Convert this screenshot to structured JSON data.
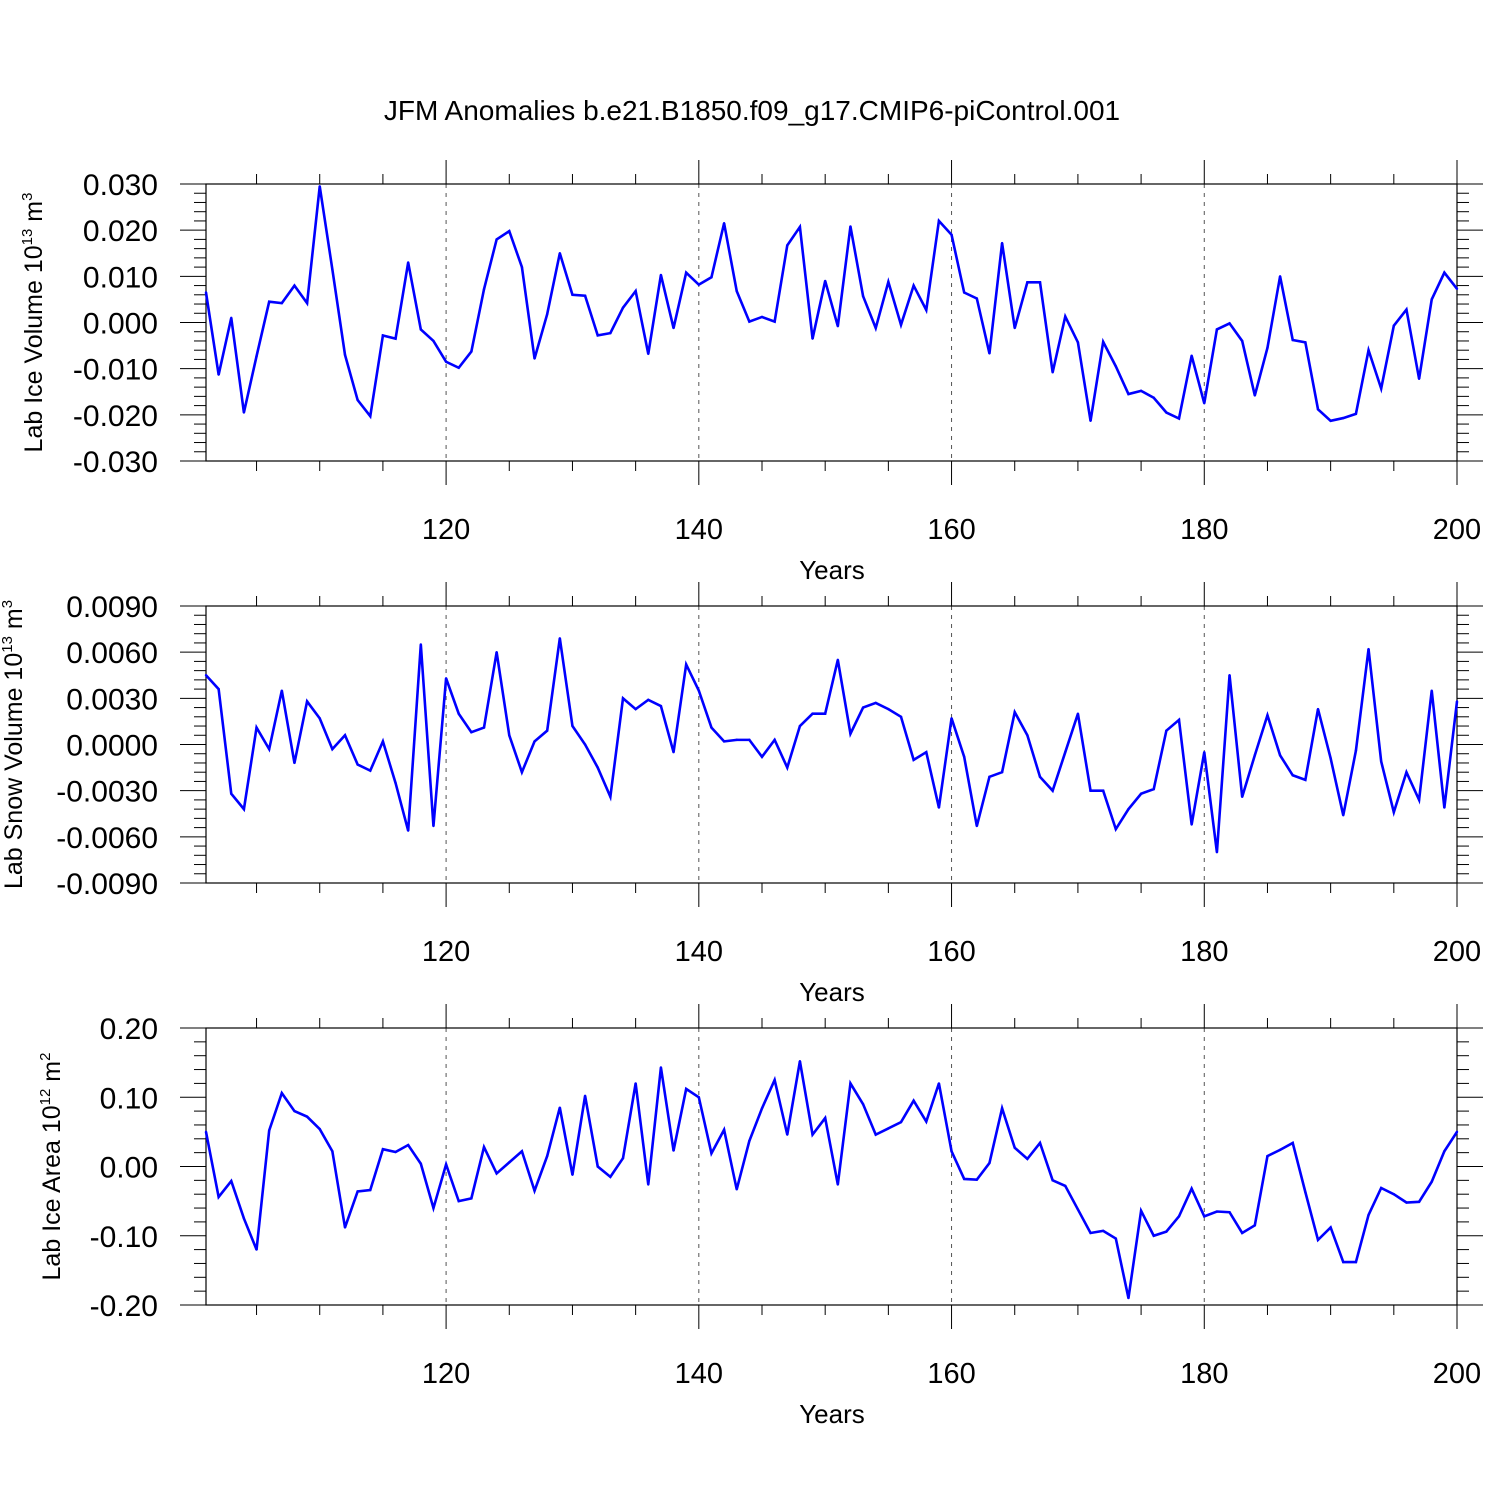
{
  "title": "JFM Anomalies b.e21.B1850.f09_g17.CMIP6-piControl.001",
  "colors": {
    "line": "#0000ff",
    "axis": "#000000",
    "grid": "#555555"
  },
  "chart_data": [
    {
      "type": "line",
      "ylabel_main": "Lab Ice Volume 10",
      "ylabel_exp": "13",
      "ylabel_unit": " m",
      "ylabel_unit_exp": "3",
      "xlabel": "Years",
      "xlim": [
        101,
        200
      ],
      "ylim": [
        -0.03,
        0.03
      ],
      "yticks": [
        -0.03,
        -0.02,
        -0.01,
        0.0,
        0.01,
        0.02,
        0.03
      ],
      "ytick_labels": [
        "-0.030",
        "-0.020",
        "-0.010",
        "0.000",
        "0.010",
        "0.020",
        "0.030"
      ],
      "xticks": [
        120,
        140,
        160,
        180,
        200
      ],
      "xtick_labels": [
        "120",
        "140",
        "160",
        "180",
        "200"
      ],
      "x_start": 101,
      "values": [
        0.0065,
        -0.0113,
        0.001,
        -0.0195,
        -0.0073,
        0.0045,
        0.0042,
        0.008,
        0.0042,
        0.0295,
        0.0115,
        -0.007,
        -0.0168,
        -0.0203,
        -0.0028,
        -0.0035,
        0.013,
        -0.0015,
        -0.004,
        -0.0085,
        -0.0098,
        -0.0063,
        0.0072,
        0.018,
        0.0198,
        0.012,
        -0.0078,
        0.0018,
        0.015,
        0.006,
        0.0058,
        -0.0028,
        -0.0023,
        0.0032,
        0.0068,
        -0.0068,
        0.0103,
        -0.0012,
        0.0108,
        0.0082,
        0.0098,
        0.0215,
        0.0068,
        0.0002,
        0.0012,
        0.0002,
        0.0167,
        0.0207,
        -0.0035,
        0.009,
        -0.0008,
        0.0208,
        0.0057,
        -0.0012,
        0.0088,
        -0.0005,
        0.008,
        0.0027,
        0.022,
        0.019,
        0.0065,
        0.0052,
        -0.0067,
        0.0172,
        -0.0012,
        0.0087,
        0.0087,
        -0.0108,
        0.0013,
        -0.0043,
        -0.0213,
        -0.0042,
        -0.0095,
        -0.0155,
        -0.0148,
        -0.0163,
        -0.0195,
        -0.0208,
        -0.0072,
        -0.0175,
        -0.0015,
        -0.0002,
        -0.004,
        -0.0158,
        -0.0055,
        0.01,
        -0.0038,
        -0.0043,
        -0.0188,
        -0.0213,
        -0.0207,
        -0.0198,
        -0.006,
        -0.0143,
        -0.0007,
        0.0028,
        -0.0122,
        0.005,
        0.0108,
        0.0073
      ]
    },
    {
      "type": "line",
      "ylabel_main": "Lab Snow Volume 10",
      "ylabel_exp": "13",
      "ylabel_unit": " m",
      "ylabel_unit_exp": "3",
      "xlabel": "Years",
      "xlim": [
        101,
        200
      ],
      "ylim": [
        -0.009,
        0.009
      ],
      "yticks": [
        -0.009,
        -0.006,
        -0.003,
        0.0,
        0.003,
        0.006,
        0.009
      ],
      "ytick_labels": [
        "-0.0090",
        "-0.0060",
        "-0.0030",
        "0.0000",
        "0.0030",
        "0.0060",
        "0.0090"
      ],
      "xticks": [
        120,
        140,
        160,
        180,
        200
      ],
      "xtick_labels": [
        "120",
        "140",
        "160",
        "180",
        "200"
      ],
      "x_start": 101,
      "values": [
        0.0045,
        0.0036,
        -0.0032,
        -0.0042,
        0.0011,
        -0.0003,
        0.0035,
        -0.0012,
        0.0028,
        0.0017,
        -0.0003,
        0.0006,
        -0.0013,
        -0.0017,
        0.0002,
        -0.0025,
        -0.0056,
        0.0065,
        -0.0053,
        0.0043,
        0.002,
        0.0008,
        0.0011,
        0.006,
        0.0006,
        -0.0018,
        0.0002,
        0.0009,
        0.0069,
        0.0012,
        0.0,
        -0.0015,
        -0.0034,
        0.003,
        0.0023,
        0.0029,
        0.0025,
        -0.0005,
        0.0052,
        0.0035,
        0.0011,
        0.0002,
        0.0003,
        0.0003,
        -0.0008,
        0.0003,
        -0.0015,
        0.0012,
        0.002,
        0.002,
        0.0055,
        0.0007,
        0.0024,
        0.0027,
        0.0023,
        0.0018,
        -0.001,
        -0.0005,
        -0.0041,
        0.0017,
        -0.0008,
        -0.0053,
        -0.0021,
        -0.0018,
        0.0021,
        0.0006,
        -0.0021,
        -0.003,
        -0.0005,
        0.002,
        -0.003,
        -0.003,
        -0.0055,
        -0.0042,
        -0.0032,
        -0.0029,
        0.0009,
        0.0016,
        -0.0052,
        -0.0005,
        -0.007,
        0.0045,
        -0.0034,
        -0.0007,
        0.0019,
        -0.0007,
        -0.002,
        -0.0023,
        0.0023,
        -0.0009,
        -0.0046,
        -0.0004,
        0.0062,
        -0.0011,
        -0.0044,
        -0.0018,
        -0.0036,
        0.0035,
        -0.0041,
        0.0028
      ]
    },
    {
      "type": "line",
      "ylabel_main": "Lab Ice Area 10",
      "ylabel_exp": "12",
      "ylabel_unit": " m",
      "ylabel_unit_exp": "2",
      "xlabel": "Years",
      "xlim": [
        101,
        200
      ],
      "ylim": [
        -0.2,
        0.2
      ],
      "yticks": [
        -0.2,
        -0.1,
        0.0,
        0.1,
        0.2
      ],
      "ytick_labels": [
        "-0.20",
        "-0.10",
        "0.00",
        "0.10",
        "0.20"
      ],
      "xticks": [
        120,
        140,
        160,
        180,
        200
      ],
      "xtick_labels": [
        "120",
        "140",
        "160",
        "180",
        "200"
      ],
      "x_start": 101,
      "values": [
        0.05,
        -0.044,
        -0.021,
        -0.075,
        -0.12,
        0.052,
        0.106,
        0.08,
        0.072,
        0.054,
        0.022,
        -0.088,
        -0.036,
        -0.034,
        0.025,
        0.021,
        0.031,
        0.004,
        -0.06,
        0.003,
        -0.05,
        -0.046,
        0.028,
        -0.01,
        0.006,
        0.022,
        -0.035,
        0.015,
        0.085,
        -0.012,
        0.102,
        0.0,
        -0.015,
        0.012,
        0.12,
        -0.026,
        0.143,
        0.023,
        0.112,
        0.1,
        0.019,
        0.053,
        -0.033,
        0.037,
        0.084,
        0.125,
        0.046,
        0.152,
        0.046,
        0.07,
        -0.026,
        0.12,
        0.09,
        0.046,
        0.055,
        0.064,
        0.095,
        0.065,
        0.12,
        0.022,
        -0.018,
        -0.019,
        0.005,
        0.084,
        0.027,
        0.011,
        0.034,
        -0.02,
        -0.028,
        -0.062,
        -0.096,
        -0.093,
        -0.104,
        -0.19,
        -0.064,
        -0.1,
        -0.094,
        -0.072,
        -0.032,
        -0.072,
        -0.065,
        -0.066,
        -0.096,
        -0.085,
        0.015,
        0.024,
        0.034,
        -0.037,
        -0.106,
        -0.088,
        -0.138,
        -0.138,
        -0.07,
        -0.031,
        -0.04,
        -0.052,
        -0.051,
        -0.022,
        0.022,
        0.05
      ]
    }
  ]
}
